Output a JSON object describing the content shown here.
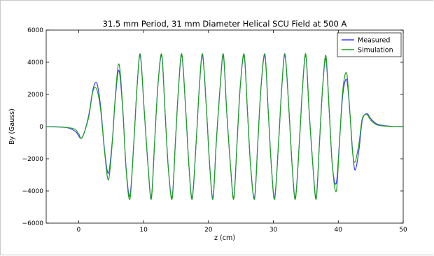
{
  "chart_data": {
    "type": "line",
    "title": "31.5 mm Period, 31 mm Diameter Helical SCU Field at 500 A",
    "xlabel": "z (cm)",
    "ylabel": "By (Gauss)",
    "xlim": [
      -5,
      50
    ],
    "ylim": [
      -6000,
      6000
    ],
    "xticks": [
      0,
      10,
      20,
      30,
      40,
      50
    ],
    "yticks": [
      -6000,
      -4000,
      -2000,
      0,
      2000,
      4000,
      6000
    ],
    "xtick_labels": [
      "0",
      "10",
      "20",
      "30",
      "40",
      "50"
    ],
    "ytick_labels": [
      "−6000",
      "−4000",
      "−2000",
      "0",
      "2000",
      "4000",
      "6000"
    ],
    "grid": false,
    "legend_position": "top-right",
    "series": [
      {
        "name": "Measured",
        "color": "#3b3bff",
        "x": [
          -5.0,
          -2.0,
          -0.5,
          0.5,
          1.5,
          2.2,
          2.8,
          3.4,
          4.0,
          4.6,
          5.2,
          5.6,
          6.2,
          6.8,
          7.3,
          7.9,
          8.5,
          9.0,
          9.5,
          10.1,
          10.7,
          11.2,
          11.7,
          12.2,
          12.8,
          13.3,
          13.8,
          14.4,
          14.9,
          15.4,
          15.9,
          16.5,
          17.0,
          17.5,
          18.1,
          18.6,
          19.1,
          19.7,
          20.2,
          20.7,
          21.2,
          21.8,
          22.3,
          22.8,
          23.4,
          23.9,
          24.4,
          24.9,
          25.5,
          26.0,
          26.5,
          27.1,
          27.6,
          28.1,
          28.7,
          29.2,
          29.7,
          30.2,
          30.8,
          31.3,
          31.8,
          32.4,
          32.9,
          33.4,
          34.0,
          34.5,
          35.0,
          35.5,
          36.1,
          36.6,
          37.1,
          37.6,
          38.1,
          38.6,
          39.1,
          39.7,
          40.2,
          40.7,
          41.3,
          41.8,
          42.2,
          42.6,
          43.2,
          43.7,
          44.4,
          45.0,
          46.0,
          48.0,
          50.0
        ],
        "y": [
          0,
          -50,
          -300,
          -700,
          600,
          2300,
          2700,
          1200,
          -1500,
          -2900,
          -800,
          1500,
          3500,
          1000,
          -2500,
          -4300,
          -1000,
          2500,
          4400,
          1000,
          -2500,
          -4400,
          -1000,
          2500,
          4400,
          1000,
          -2500,
          -4400,
          -1000,
          2500,
          4400,
          1000,
          -2500,
          -4400,
          -1000,
          2500,
          4400,
          1000,
          -2500,
          -4400,
          -1000,
          2500,
          4400,
          1000,
          -2500,
          -4400,
          -1000,
          2500,
          4400,
          1000,
          -2500,
          -4400,
          -1000,
          2500,
          4400,
          1000,
          -2500,
          -4400,
          -1000,
          2500,
          4400,
          1000,
          -2500,
          -4400,
          -1000,
          2500,
          4400,
          1000,
          -2500,
          -4400,
          -1000,
          2500,
          4200,
          1000,
          -2500,
          -3500,
          -800,
          2000,
          2900,
          800,
          -1500,
          -2700,
          -1400,
          400,
          800,
          500,
          150,
          20,
          0
        ]
      },
      {
        "name": "Simulation",
        "color": "#1fa01f",
        "x": [
          -5.0,
          -1.0,
          0.0,
          0.5,
          1.5,
          2.2,
          2.8,
          3.4,
          4.0,
          4.6,
          5.2,
          5.6,
          6.2,
          6.8,
          7.3,
          7.9,
          8.5,
          9.0,
          9.5,
          10.1,
          10.7,
          11.2,
          11.7,
          12.2,
          12.8,
          13.3,
          13.8,
          14.4,
          14.9,
          15.4,
          15.9,
          16.5,
          17.0,
          17.5,
          18.1,
          18.6,
          19.1,
          19.7,
          20.2,
          20.7,
          21.2,
          21.8,
          22.3,
          22.8,
          23.4,
          23.9,
          24.4,
          24.9,
          25.5,
          26.0,
          26.5,
          27.1,
          27.6,
          28.1,
          28.7,
          29.2,
          29.7,
          30.2,
          30.8,
          31.3,
          31.8,
          32.4,
          32.9,
          33.4,
          34.0,
          34.5,
          35.0,
          35.5,
          36.1,
          36.6,
          37.1,
          37.6,
          38.1,
          38.6,
          39.1,
          39.7,
          40.2,
          40.7,
          41.3,
          41.8,
          42.2,
          42.6,
          43.2,
          43.7,
          44.4,
          45.0,
          46.0,
          48.0,
          50.0
        ],
        "y": [
          0,
          -100,
          -450,
          -700,
          500,
          2200,
          2300,
          1000,
          -1600,
          -3300,
          -900,
          1600,
          3900,
          1100,
          -2600,
          -4500,
          -1000,
          2500,
          4500,
          1000,
          -2500,
          -4500,
          -1000,
          2500,
          4500,
          1000,
          -2500,
          -4500,
          -1000,
          2500,
          4500,
          1000,
          -2500,
          -4500,
          -1000,
          2500,
          4500,
          1000,
          -2500,
          -4500,
          -1000,
          2500,
          4500,
          1000,
          -2500,
          -4500,
          -1000,
          2500,
          4500,
          1000,
          -2500,
          -4500,
          -1000,
          2500,
          4500,
          1000,
          -2500,
          -4500,
          -1000,
          2500,
          4500,
          1000,
          -2500,
          -4500,
          -1000,
          2500,
          4500,
          1000,
          -2500,
          -4500,
          -1000,
          2500,
          4400,
          1000,
          -2500,
          -4000,
          -900,
          2300,
          3300,
          800,
          -1600,
          -2200,
          -1000,
          500,
          750,
          400,
          100,
          10,
          0
        ]
      }
    ]
  }
}
